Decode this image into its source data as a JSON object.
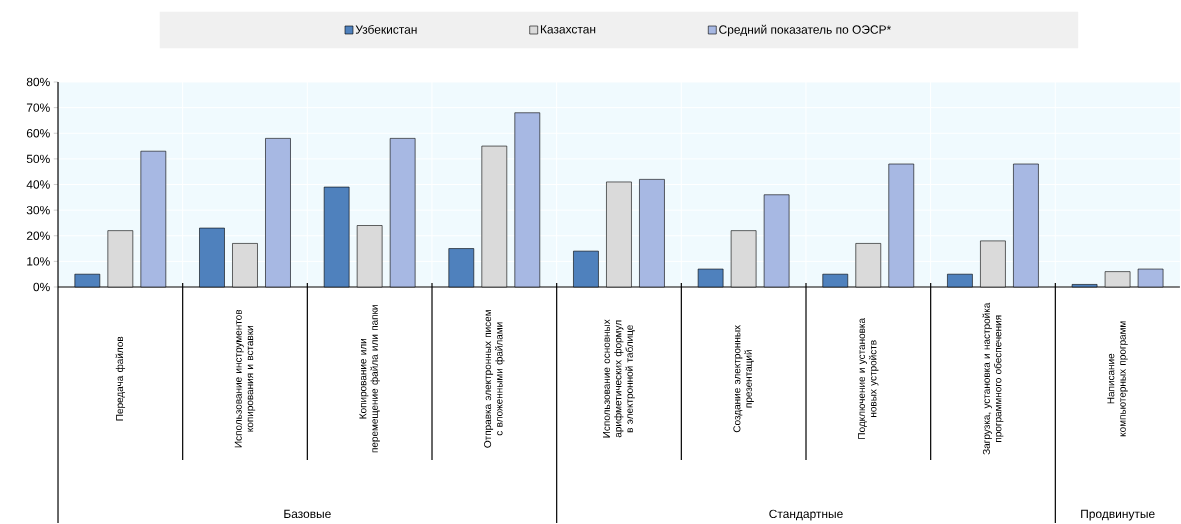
{
  "chart_data": {
    "type": "bar",
    "categories": [
      "Передача файлов",
      "Использование инструментов копирования и вставки",
      "Копирование или перемещение файла или папки",
      "Отправка электронных писем с вложенными файлами",
      "Использование основных арифметических формул в электронной таблице",
      "Создание электронных презентаций",
      "Подключение и установка новых устройств",
      "Загрузка, установка и настройка программного обеспечения",
      "Написание компьютерных программ"
    ],
    "series": [
      {
        "name": "Узбекистан",
        "color": "#4f81bd",
        "values": [
          5,
          23,
          39,
          15,
          14,
          7,
          5,
          5,
          1
        ]
      },
      {
        "name": "Казахстан",
        "color": "#dadada",
        "values": [
          22,
          17,
          24,
          55,
          41,
          22,
          17,
          18,
          6
        ]
      },
      {
        "name": "Средний показатель по ОЭСР*",
        "color": "#a7b8e3",
        "values": [
          53,
          58,
          58,
          68,
          42,
          36,
          48,
          48,
          7
        ]
      }
    ],
    "ylim": [
      0,
      80
    ],
    "yticks": [
      {
        "value": 0,
        "label": "0%"
      },
      {
        "value": 10,
        "label": "10%"
      },
      {
        "value": 20,
        "label": "20%"
      },
      {
        "value": 30,
        "label": "30%"
      },
      {
        "value": 40,
        "label": "40%"
      },
      {
        "value": 50,
        "label": "50%"
      },
      {
        "value": 60,
        "label": "60%"
      },
      {
        "value": 70,
        "label": "70%"
      },
      {
        "value": 80,
        "label": "80%"
      }
    ],
    "annotations": [
      "Базовые",
      "Стандартные",
      "Продвинутые"
    ],
    "grid": true,
    "legend": "top"
  }
}
